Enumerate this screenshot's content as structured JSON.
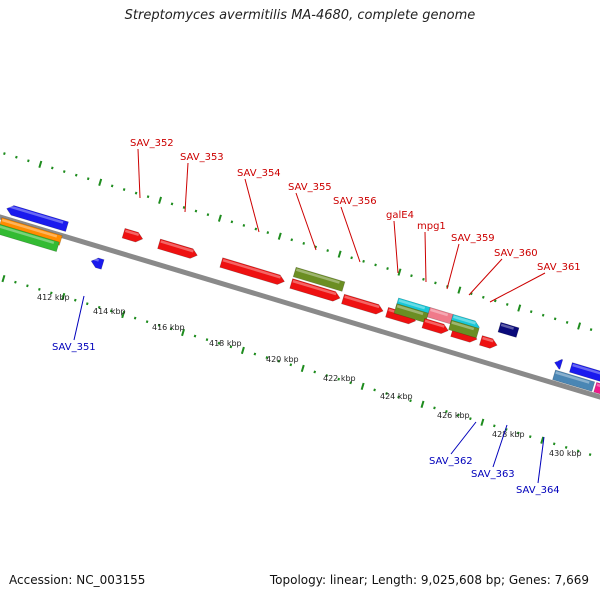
{
  "title": "Streptomyces avermitilis MA-4680, complete genome",
  "footer": {
    "accession": "Accession: NC_003155",
    "summary": "Topology: linear; Length: 9,025,608 bp; Genes: 7,669"
  },
  "colors": {
    "backbone": "#8a8a8a",
    "tick": "#1e8c1e",
    "label_top": "#cc0000",
    "label_bottom": "#0000bb",
    "gene_red": "#ee1111",
    "gene_olive": "#6b8e23",
    "gene_cyan": "#18c8d8",
    "gene_pink": "#f07a8a",
    "gene_navy": "#0a0a7a",
    "gene_blue": "#1a1aee",
    "gene_steel": "#4a86b4",
    "gene_magenta": "#ee1a8a",
    "gene_orange": "#ff8c00",
    "gene_green": "#33bb33"
  },
  "scale_labels": [
    "412 kbp",
    "414 kbp",
    "416 kbp",
    "418 kbp",
    "420 kbp",
    "422 kbp",
    "424 kbp",
    "426 kbp",
    "428 kbp",
    "430 kbp"
  ],
  "top_gene_labels": [
    "SAV_352",
    "SAV_353",
    "SAV_354",
    "SAV_355",
    "SAV_356",
    "galE4",
    "mpg1",
    "SAV_359",
    "SAV_360",
    "SAV_361"
  ],
  "bottom_gene_labels": [
    "SAV_351",
    "SAV_362",
    "SAV_363",
    "SAV_364"
  ]
}
